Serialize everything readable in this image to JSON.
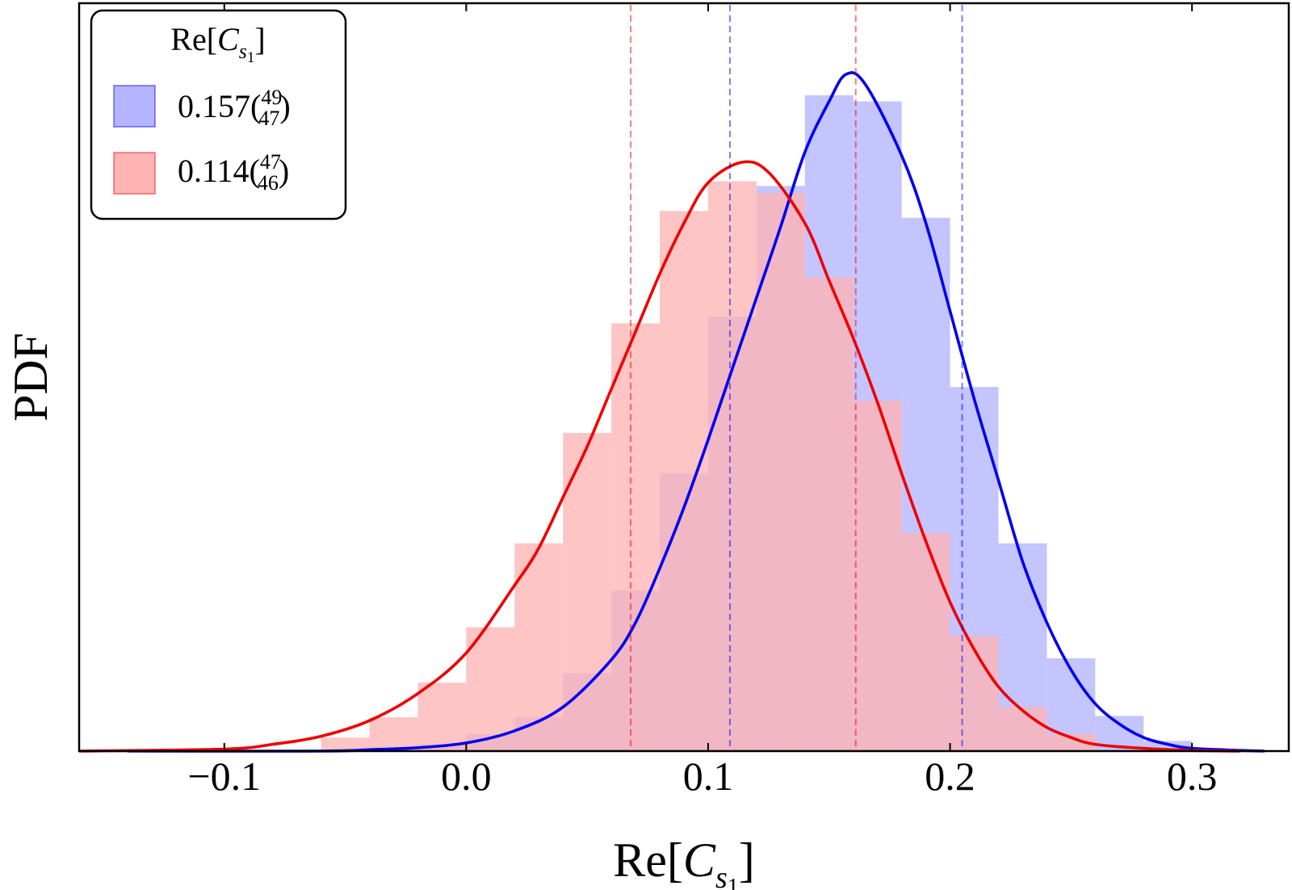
{
  "chart_data": {
    "type": "histogram+density",
    "title": "",
    "xlabel": {
      "base": "Re[",
      "var": "C",
      "sub1": "s",
      "sub2": "1",
      "close": "]"
    },
    "ylabel": "PDF",
    "xlim": [
      -0.16,
      0.34
    ],
    "ylim": [
      0,
      1.0
    ],
    "xticks": [
      {
        "v": -0.1,
        "label": "−0.1"
      },
      {
        "v": 0.0,
        "label": "0.0"
      },
      {
        "v": 0.1,
        "label": "0.1"
      },
      {
        "v": 0.2,
        "label": "0.2"
      },
      {
        "v": 0.3,
        "label": "0.3"
      }
    ],
    "legend": {
      "placement": "top-left",
      "title": {
        "base": "Re[",
        "var": "C",
        "sub1": "s",
        "sub2": "1",
        "close": "]"
      },
      "entries": [
        {
          "series": 0,
          "value": "0.157(",
          "sup": "49",
          "sub": "47",
          "close": ")"
        },
        {
          "series": 1,
          "value": "0.114(",
          "sup": "47",
          "sub": "46",
          "close": ")"
        }
      ]
    },
    "bin_width": 0.02,
    "series": [
      {
        "name": "blue",
        "line_color": "#0000ee",
        "fill_color": "#b4b4ff",
        "central": 0.157,
        "interval": [
          0.109,
          0.205
        ],
        "histogram": [
          {
            "x0": -0.02,
            "h": 0.01
          },
          {
            "x0": 0.0,
            "h": 0.025
          },
          {
            "x0": 0.02,
            "h": 0.05
          },
          {
            "x0": 0.04,
            "h": 0.115
          },
          {
            "x0": 0.06,
            "h": 0.237
          },
          {
            "x0": 0.08,
            "h": 0.41
          },
          {
            "x0": 0.1,
            "h": 0.642
          },
          {
            "x0": 0.12,
            "h": 0.835
          },
          {
            "x0": 0.14,
            "h": 0.969
          },
          {
            "x0": 0.16,
            "h": 0.96
          },
          {
            "x0": 0.18,
            "h": 0.788
          },
          {
            "x0": 0.2,
            "h": 0.538
          },
          {
            "x0": 0.22,
            "h": 0.307
          },
          {
            "x0": 0.24,
            "h": 0.137
          },
          {
            "x0": 0.26,
            "h": 0.052
          },
          {
            "x0": 0.28,
            "h": 0.015
          }
        ],
        "density": [
          [
            -0.14,
            0.0
          ],
          [
            -0.06,
            0.0
          ],
          [
            -0.04,
            0.002
          ],
          [
            -0.02,
            0.005
          ],
          [
            0.0,
            0.012
          ],
          [
            0.02,
            0.03
          ],
          [
            0.04,
            0.065
          ],
          [
            0.06,
            0.135
          ],
          [
            0.07,
            0.19
          ],
          [
            0.08,
            0.27
          ],
          [
            0.09,
            0.36
          ],
          [
            0.1,
            0.46
          ],
          [
            0.11,
            0.565
          ],
          [
            0.12,
            0.67
          ],
          [
            0.13,
            0.775
          ],
          [
            0.14,
            0.885
          ],
          [
            0.15,
            0.96
          ],
          [
            0.157,
            1.0
          ],
          [
            0.165,
            0.985
          ],
          [
            0.18,
            0.88
          ],
          [
            0.19,
            0.78
          ],
          [
            0.2,
            0.65
          ],
          [
            0.21,
            0.52
          ],
          [
            0.22,
            0.4
          ],
          [
            0.23,
            0.28
          ],
          [
            0.24,
            0.19
          ],
          [
            0.25,
            0.12
          ],
          [
            0.26,
            0.07
          ],
          [
            0.27,
            0.04
          ],
          [
            0.28,
            0.02
          ],
          [
            0.29,
            0.01
          ],
          [
            0.3,
            0.004
          ],
          [
            0.32,
            0.001
          ],
          [
            0.33,
            0.0
          ]
        ]
      },
      {
        "name": "red",
        "line_color": "#ee0000",
        "fill_color": "#ffb4b4",
        "central": 0.114,
        "interval": [
          0.068,
          0.161
        ],
        "histogram": [
          {
            "x0": -0.06,
            "h": 0.02
          },
          {
            "x0": -0.04,
            "h": 0.05
          },
          {
            "x0": -0.02,
            "h": 0.101
          },
          {
            "x0": 0.0,
            "h": 0.183
          },
          {
            "x0": 0.02,
            "h": 0.307
          },
          {
            "x0": 0.04,
            "h": 0.47
          },
          {
            "x0": 0.06,
            "h": 0.632
          },
          {
            "x0": 0.08,
            "h": 0.798
          },
          {
            "x0": 0.1,
            "h": 0.842
          },
          {
            "x0": 0.12,
            "h": 0.825
          },
          {
            "x0": 0.14,
            "h": 0.7
          },
          {
            "x0": 0.16,
            "h": 0.518
          },
          {
            "x0": 0.18,
            "h": 0.322
          },
          {
            "x0": 0.2,
            "h": 0.17
          },
          {
            "x0": 0.22,
            "h": 0.065
          },
          {
            "x0": 0.24,
            "h": 0.025
          }
        ],
        "density": [
          [
            -0.16,
            0.0
          ],
          [
            -0.1,
            0.003
          ],
          [
            -0.08,
            0.01
          ],
          [
            -0.06,
            0.022
          ],
          [
            -0.04,
            0.045
          ],
          [
            -0.02,
            0.085
          ],
          [
            0.0,
            0.145
          ],
          [
            0.02,
            0.245
          ],
          [
            0.03,
            0.3
          ],
          [
            0.04,
            0.375
          ],
          [
            0.05,
            0.45
          ],
          [
            0.06,
            0.535
          ],
          [
            0.07,
            0.62
          ],
          [
            0.08,
            0.705
          ],
          [
            0.09,
            0.78
          ],
          [
            0.1,
            0.84
          ],
          [
            0.114,
            0.87
          ],
          [
            0.125,
            0.855
          ],
          [
            0.14,
            0.78
          ],
          [
            0.15,
            0.695
          ],
          [
            0.16,
            0.61
          ],
          [
            0.17,
            0.515
          ],
          [
            0.18,
            0.41
          ],
          [
            0.19,
            0.31
          ],
          [
            0.2,
            0.22
          ],
          [
            0.21,
            0.15
          ],
          [
            0.22,
            0.095
          ],
          [
            0.23,
            0.06
          ],
          [
            0.24,
            0.035
          ],
          [
            0.25,
            0.02
          ],
          [
            0.26,
            0.01
          ],
          [
            0.28,
            0.004
          ],
          [
            0.3,
            0.001
          ],
          [
            0.32,
            0.0
          ]
        ]
      }
    ]
  }
}
